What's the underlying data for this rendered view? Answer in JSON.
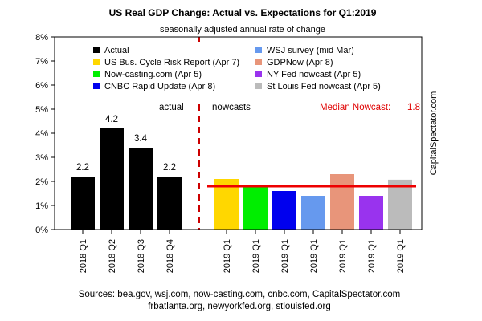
{
  "chart_data": {
    "type": "bar",
    "title": "US Real GDP Change: Actual vs. Expectations for Q1:2019",
    "subtitle": "seasonally adjusted annual rate of change",
    "ylim": [
      0,
      8
    ],
    "yticks": [
      "0%",
      "1%",
      "2%",
      "3%",
      "4%",
      "5%",
      "6%",
      "7%",
      "8%"
    ],
    "actual": {
      "categories": [
        "2018 Q1",
        "2018 Q2",
        "2018 Q3",
        "2018 Q4"
      ],
      "values": [
        2.2,
        4.2,
        3.4,
        2.2
      ],
      "labels": [
        "2.2",
        "4.2",
        "3.4",
        "2.2"
      ],
      "color": "#000000"
    },
    "nowcasts": {
      "categories": [
        "2019 Q1",
        "2019 Q1",
        "2019 Q1",
        "2019 Q1",
        "2019 Q1",
        "2019 Q1",
        "2019 Q1"
      ],
      "values": [
        2.1,
        1.8,
        1.6,
        1.4,
        2.3,
        1.4,
        2.07
      ],
      "colors": [
        "#ffd700",
        "#00ee00",
        "#0000ee",
        "#6699ee",
        "#e8957a",
        "#9933ee",
        "#bbbbbb"
      ]
    },
    "legend": [
      {
        "name": "Actual",
        "color": "#000000"
      },
      {
        "name": "WSJ survey (mid Mar)",
        "color": "#6699ee"
      },
      {
        "name": "US Bus. Cycle Risk Report (Apr 7)",
        "color": "#ffd700"
      },
      {
        "name": "GDPNow (Apr 8)",
        "color": "#e8957a"
      },
      {
        "name": "Now-casting.com (Apr 5)",
        "color": "#00ee00"
      },
      {
        "name": "NY Fed nowcast (Apr 5)",
        "color": "#9933ee"
      },
      {
        "name": "CNBC Rapid Update (Apr 8)",
        "color": "#0000ee"
      },
      {
        "name": "St Louis Fed nowcast (Apr 5)",
        "color": "#bbbbbb"
      }
    ],
    "section_labels": {
      "actual": "actual",
      "nowcasts": "nowcasts"
    },
    "median": {
      "label": "Median Nowcast:",
      "value_text": "1.8",
      "value": 1.8,
      "color": "#ee0000"
    },
    "divider_color": "#cc0000",
    "watermark": "CapitalSpectator.com",
    "sources": [
      "Sources: bea.gov, wsj.com, now-casting.com, cnbc.com, CapitalSpectator.com",
      "frbatlanta.org, newyorkfed.org, stlouisfed.org"
    ]
  }
}
